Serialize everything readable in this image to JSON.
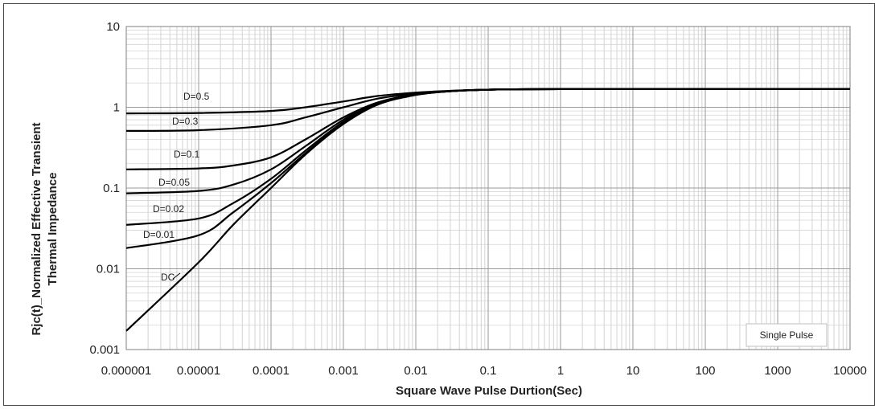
{
  "chart_data": {
    "type": "line",
    "xlabel": "Square Wave Pulse Durtion(Sec)",
    "ylabel": [
      "Rjc(t)_Normalized Effective Transient",
      "Thermal Impedance"
    ],
    "x_scale": "log",
    "y_scale": "log",
    "xlim": [
      1e-06,
      10000
    ],
    "ylim": [
      0.001,
      10
    ],
    "x_ticks": [
      "0.000001",
      "0.00001",
      "0.0001",
      "0.001",
      "0.01",
      "0.1",
      "1",
      "10",
      "100",
      "1000",
      "10000"
    ],
    "y_ticks": [
      "0.001",
      "0.01",
      "0.1",
      "1",
      "10"
    ],
    "grid": true,
    "legend_box": "Single Pulse",
    "series": [
      {
        "name": "D=0.5",
        "x": [
          1e-06,
          1e-05,
          0.0001,
          0.0003,
          0.001,
          0.003,
          0.01,
          0.03,
          0.1,
          1,
          10000
        ],
        "y": [
          0.84,
          0.85,
          0.9,
          1.0,
          1.18,
          1.38,
          1.52,
          1.6,
          1.65,
          1.68,
          1.68
        ]
      },
      {
        "name": "D=0.3",
        "x": [
          1e-06,
          1e-05,
          0.0001,
          0.0003,
          0.001,
          0.003,
          0.01,
          0.03,
          0.1,
          1,
          10000
        ],
        "y": [
          0.51,
          0.52,
          0.6,
          0.75,
          1.0,
          1.28,
          1.48,
          1.59,
          1.65,
          1.68,
          1.68
        ]
      },
      {
        "name": "D=0.1",
        "x": [
          1e-06,
          1e-05,
          3e-05,
          0.0001,
          0.0003,
          0.001,
          0.003,
          0.01,
          0.03,
          0.1,
          1,
          10000
        ],
        "y": [
          0.17,
          0.175,
          0.19,
          0.24,
          0.4,
          0.75,
          1.15,
          1.45,
          1.58,
          1.65,
          1.68,
          1.68
        ]
      },
      {
        "name": "D=0.05",
        "x": [
          1e-06,
          1e-05,
          3e-05,
          0.0001,
          0.0003,
          0.001,
          0.003,
          0.01,
          0.03,
          0.1,
          1,
          10000
        ],
        "y": [
          0.086,
          0.092,
          0.11,
          0.17,
          0.33,
          0.7,
          1.12,
          1.44,
          1.58,
          1.65,
          1.68,
          1.68
        ]
      },
      {
        "name": "D=0.02",
        "x": [
          1e-06,
          1e-05,
          3e-05,
          0.0001,
          0.0003,
          0.001,
          0.003,
          0.01,
          0.03,
          0.1,
          1,
          10000
        ],
        "y": [
          0.035,
          0.042,
          0.065,
          0.13,
          0.29,
          0.66,
          1.1,
          1.43,
          1.58,
          1.65,
          1.68,
          1.68
        ]
      },
      {
        "name": "D=0.01",
        "x": [
          1e-06,
          1e-05,
          3e-05,
          0.0001,
          0.0003,
          0.001,
          0.003,
          0.01,
          0.03,
          0.1,
          1,
          10000
        ],
        "y": [
          0.018,
          0.026,
          0.05,
          0.115,
          0.27,
          0.64,
          1.09,
          1.43,
          1.58,
          1.65,
          1.68,
          1.68
        ]
      },
      {
        "name": "DC",
        "x": [
          1e-06,
          1e-05,
          3e-05,
          0.0001,
          0.0003,
          0.001,
          0.003,
          0.01,
          0.03,
          0.1,
          1,
          10000
        ],
        "y": [
          0.0017,
          0.012,
          0.035,
          0.1,
          0.26,
          0.62,
          1.08,
          1.42,
          1.58,
          1.65,
          1.68,
          1.68
        ]
      }
    ]
  }
}
